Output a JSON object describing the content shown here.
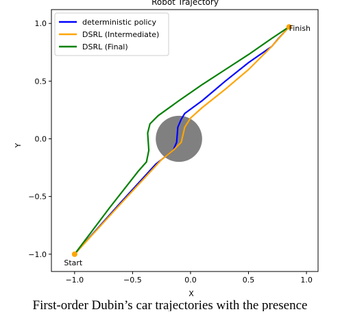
{
  "chart_data": {
    "type": "line",
    "title": "Robot Trajectory",
    "x_label": "X",
    "y_label": "Y",
    "caption": "First-order Dubin’s car trajectories with the presence",
    "xlim": [
      -1.2,
      1.1
    ],
    "ylim": [
      -1.15,
      1.12
    ],
    "xticks": [
      {
        "value": -1,
        "label": "−1.0"
      },
      {
        "value": -0.5,
        "label": "−0.5"
      },
      {
        "value": 0,
        "label": "0.0"
      },
      0.5,
      {
        "value": 1,
        "label": "1.0"
      }
    ],
    "yticks": [
      {
        "value": -1,
        "label": "−1.0"
      },
      {
        "value": -0.5,
        "label": "−0.5"
      },
      {
        "value": 0,
        "label": "0.0"
      },
      0.5,
      {
        "value": 1,
        "label": "1.0"
      }
    ],
    "legend": "upper left",
    "obstacle": {
      "center": [
        -0.1,
        0
      ],
      "radius": 0.2,
      "color": "#808080"
    },
    "markers": [
      {
        "label": "Start",
        "x": -1,
        "y": -1,
        "color": "#ffa500"
      },
      {
        "label": "Finish",
        "x": 0.85,
        "y": 0.97,
        "color": "#ffa500"
      }
    ],
    "series": [
      {
        "name": "deterministic policy",
        "color": "#0000ff",
        "x": [
          -1,
          -0.6,
          -0.3,
          -0.15,
          -0.12,
          -0.11,
          -0.08,
          -0.05,
          0.1,
          0.3,
          0.5,
          0.7,
          0.75,
          0.85
        ],
        "values": [
          -1,
          -0.55,
          -0.22,
          -0.1,
          -0.03,
          0.1,
          0.17,
          0.22,
          0.33,
          0.5,
          0.66,
          0.8,
          0.86,
          0.97
        ]
      },
      {
        "name": "DSRL (Intermediate)",
        "color": "#ffa500",
        "x": [
          -1,
          -0.6,
          -0.25,
          -0.15,
          -0.08,
          -0.05,
          0,
          0.1,
          0.3,
          0.5,
          0.7,
          0.85
        ],
        "values": [
          -1,
          -0.56,
          -0.18,
          -0.1,
          -0.03,
          0.1,
          0.18,
          0.27,
          0.43,
          0.6,
          0.8,
          0.97
        ]
      },
      {
        "name": "DSRL (Final)",
        "color": "#008000",
        "x": [
          -1,
          -0.7,
          -0.45,
          -0.38,
          -0.36,
          -0.37,
          -0.35,
          -0.28,
          -0.1,
          0.1,
          0.3,
          0.5,
          0.7,
          0.85
        ],
        "values": [
          -1,
          -0.6,
          -0.28,
          -0.2,
          -0.1,
          0.05,
          0.13,
          0.2,
          0.33,
          0.47,
          0.6,
          0.73,
          0.87,
          0.97
        ]
      }
    ]
  }
}
